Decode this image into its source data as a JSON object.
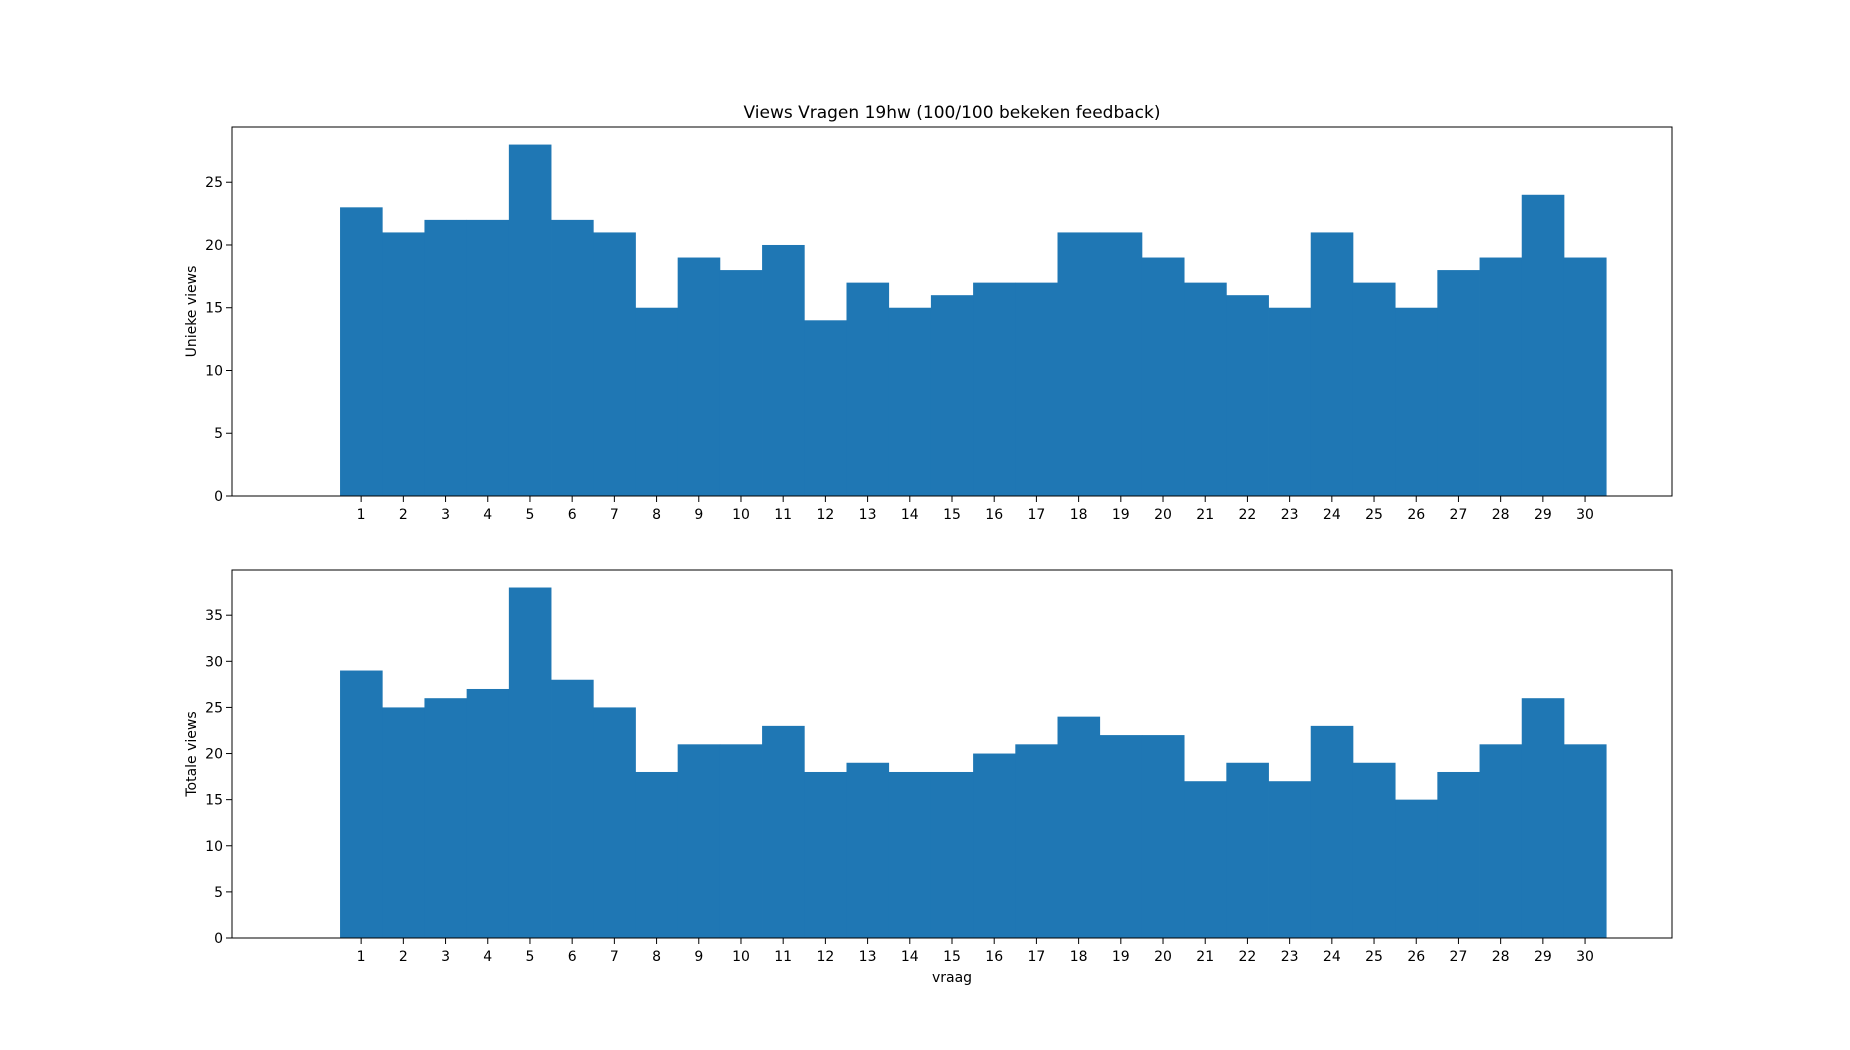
{
  "chart_data": [
    {
      "type": "bar",
      "title": "Views Vragen 19hw (100/100 bekeken feedback)",
      "xlabel": "",
      "ylabel": "Unieke views",
      "categories": [
        "1",
        "2",
        "3",
        "4",
        "5",
        "6",
        "7",
        "8",
        "9",
        "10",
        "11",
        "12",
        "13",
        "14",
        "15",
        "16",
        "17",
        "18",
        "19",
        "20",
        "21",
        "22",
        "23",
        "24",
        "25",
        "26",
        "27",
        "28",
        "29",
        "30"
      ],
      "values": [
        23,
        21,
        22,
        22,
        28,
        22,
        21,
        15,
        19,
        18,
        20,
        14,
        17,
        15,
        16,
        17,
        17,
        21,
        21,
        19,
        17,
        16,
        15,
        21,
        17,
        15,
        18,
        19,
        24,
        19
      ],
      "ylim": [
        0,
        29.4
      ],
      "yticks": [
        0,
        5,
        10,
        15,
        20,
        25
      ],
      "xlim": [
        -2.06,
        32.06
      ],
      "color": "#1f77b4",
      "grid": false,
      "legend": "none"
    },
    {
      "type": "bar",
      "title": "",
      "xlabel": "vraag",
      "ylabel": "Totale views",
      "categories": [
        "1",
        "2",
        "3",
        "4",
        "5",
        "6",
        "7",
        "8",
        "9",
        "10",
        "11",
        "12",
        "13",
        "14",
        "15",
        "16",
        "17",
        "18",
        "19",
        "20",
        "21",
        "22",
        "23",
        "24",
        "25",
        "26",
        "27",
        "28",
        "29",
        "30"
      ],
      "values": [
        29,
        25,
        26,
        27,
        38,
        28,
        25,
        18,
        21,
        21,
        23,
        18,
        19,
        18,
        18,
        20,
        21,
        24,
        22,
        22,
        17,
        19,
        17,
        23,
        19,
        15,
        18,
        21,
        26,
        21
      ],
      "ylim": [
        0,
        39.9
      ],
      "yticks": [
        0,
        5,
        10,
        15,
        20,
        25,
        30,
        35
      ],
      "xlim": [
        -2.06,
        32.06
      ],
      "color": "#1f77b4",
      "grid": false,
      "legend": "none"
    }
  ]
}
